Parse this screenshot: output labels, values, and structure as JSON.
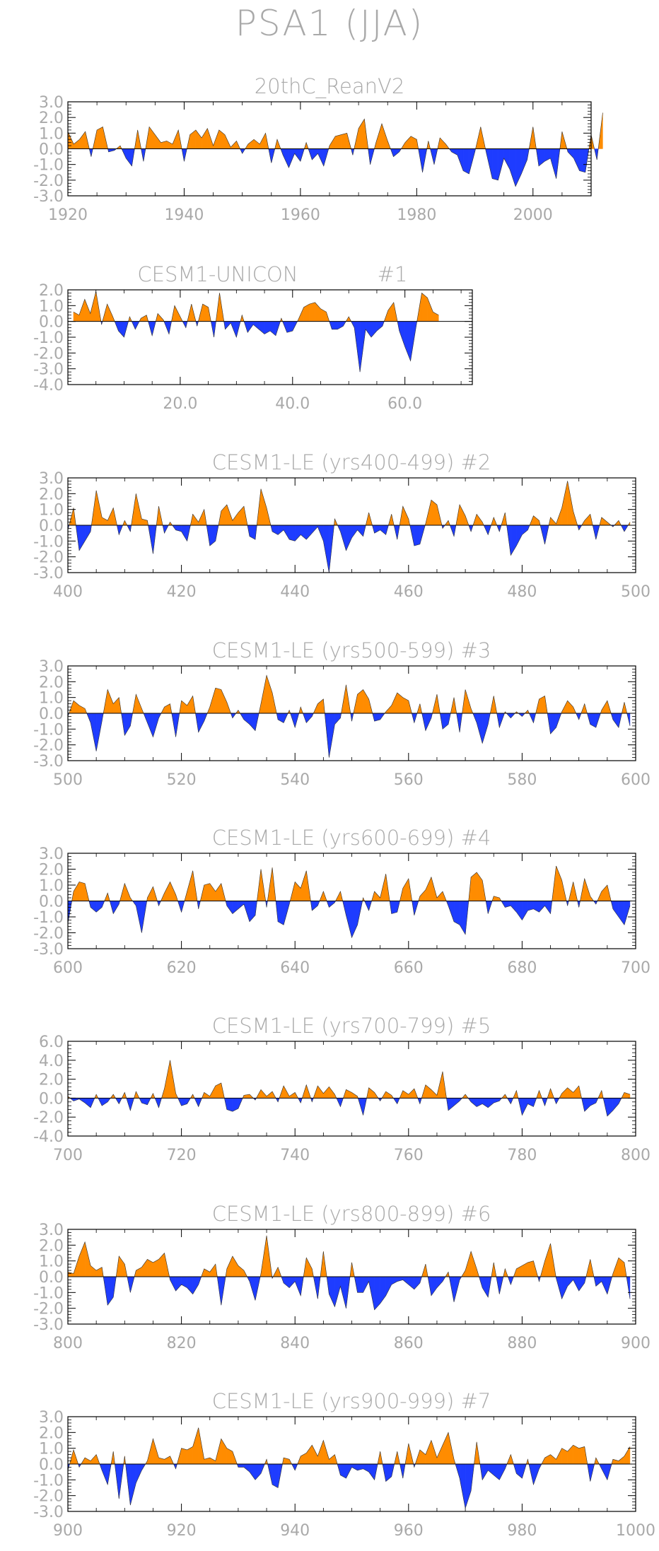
{
  "title": "PSA1  (JJA)",
  "colors": {
    "positive": "#ff8c00",
    "negative": "#1e3cff",
    "text": "#a9a9a9",
    "axis": "#000000"
  },
  "chart_data": [
    {
      "type": "area",
      "title": "20thC_ReanV2",
      "x": {
        "start": 1920,
        "end": 2010,
        "min": 1920,
        "max": 2010,
        "ticks": [
          1920,
          1940,
          1960,
          1980,
          2000
        ],
        "tick_labels": [
          "1920",
          "1940",
          "1960",
          "1980",
          "2000"
        ]
      },
      "y": {
        "min": -3.0,
        "max": 3.0,
        "ticks": [
          -3.0,
          -2.0,
          -1.0,
          0.0,
          1.0,
          2.0,
          3.0
        ],
        "tick_labels": [
          "-3.0",
          "-2.0",
          "-1.0",
          "0.0",
          "1.0",
          "2.0",
          "3.0"
        ]
      },
      "values": [
        1.1,
        0.3,
        0.6,
        1.1,
        -0.5,
        1.2,
        1.4,
        -0.2,
        -0.1,
        0.2,
        -0.6,
        -1.1,
        1.2,
        -0.8,
        1.4,
        0.9,
        0.4,
        0.5,
        0.3,
        1.2,
        -0.8,
        0.9,
        1.2,
        0.7,
        1.3,
        0.2,
        1.2,
        0.9,
        0.1,
        0.5,
        -0.3,
        0.3,
        0.6,
        0.3,
        1.0,
        -0.9,
        0.6,
        -0.4,
        -1.2,
        -0.3,
        -0.8,
        0.4,
        -0.7,
        -0.3,
        -1.1,
        0.2,
        0.8,
        0.9,
        1.0,
        -0.4,
        1.3,
        1.9,
        -1.0,
        0.4,
        1.6,
        0.5,
        -0.5,
        -0.2,
        0.4,
        0.8,
        0.6,
        -1.5,
        0.5,
        -1.0,
        0.7,
        0.3,
        -0.2,
        -0.4,
        -1.4,
        -1.6,
        -0.2,
        1.4,
        -0.3,
        -1.9,
        -2.0,
        -0.6,
        -1.3,
        -2.4,
        -1.6,
        -0.7,
        1.4,
        -1.1,
        -0.8,
        -0.6,
        -1.9,
        1.1,
        -0.2,
        -0.6,
        -1.4,
        -1.5,
        0.9,
        -0.7,
        2.3
      ]
    },
    {
      "type": "area",
      "title": "CESM1-UNICON",
      "run_label": "#1",
      "x": {
        "start": 1,
        "end": 70,
        "min": 0,
        "max": 72,
        "ticks": [
          20,
          40,
          60
        ],
        "tick_labels": [
          "20.0",
          "40.0",
          "60.0"
        ]
      },
      "y": {
        "min": -4.0,
        "max": 2.0,
        "ticks": [
          -4.0,
          -3.0,
          -2.0,
          -1.0,
          0.0,
          1.0,
          2.0
        ],
        "tick_labels": [
          "-4.0",
          "-3.0",
          "-2.0",
          "-1.0",
          "0.0",
          "1.0",
          "2.0"
        ]
      },
      "values": [
        0.6,
        0.4,
        1.4,
        0.5,
        1.9,
        -0.2,
        1.1,
        0.3,
        -0.6,
        -1.0,
        0.3,
        -0.5,
        0.2,
        0.4,
        -0.9,
        0.5,
        0.1,
        -0.8,
        1.0,
        0.3,
        -0.4,
        1.1,
        -0.3,
        1.1,
        0.9,
        -1.0,
        1.8,
        -0.5,
        -0.1,
        -1.0,
        0.4,
        -0.7,
        -0.2,
        -0.5,
        -0.8,
        -0.6,
        -0.9,
        0.2,
        -0.7,
        -0.6,
        0.1,
        0.9,
        1.1,
        1.2,
        0.8,
        0.6,
        -0.5,
        -0.5,
        -0.3,
        0.3,
        -0.4,
        -3.2,
        -0.5,
        -1.0,
        -0.6,
        -0.3,
        0.7,
        1.2,
        -0.6,
        -1.6,
        -2.5,
        -0.3,
        1.8,
        1.5,
        0.6,
        0.4
      ]
    },
    {
      "type": "area",
      "title": "CESM1-LE (yrs400-499)",
      "run_label": "#2",
      "x": {
        "start": 400,
        "end": 499,
        "min": 400,
        "max": 500,
        "ticks": [
          400,
          420,
          440,
          460,
          480,
          500
        ],
        "tick_labels": [
          "400",
          "420",
          "440",
          "460",
          "480",
          "500"
        ]
      },
      "y": {
        "min": -3.0,
        "max": 3.0,
        "ticks": [
          -3.0,
          -2.0,
          -1.0,
          0.0,
          1.0,
          2.0,
          3.0
        ],
        "tick_labels": [
          "-3.0",
          "-2.0",
          "-1.0",
          "0.0",
          "1.0",
          "2.0",
          "3.0"
        ]
      },
      "values": [
        -0.3,
        1.1,
        -1.6,
        -1.0,
        -0.4,
        2.2,
        0.5,
        0.3,
        1.1,
        -0.6,
        0.3,
        -0.4,
        2.0,
        0.4,
        0.3,
        -1.8,
        1.2,
        -0.5,
        0.2,
        -0.3,
        -0.4,
        -1.0,
        0.7,
        0.2,
        1.0,
        -1.3,
        -1.0,
        0.9,
        1.3,
        0.3,
        0.8,
        1.2,
        -0.7,
        -0.9,
        2.3,
        1.1,
        -0.4,
        -0.6,
        -0.3,
        -0.9,
        -1.0,
        -0.6,
        -0.9,
        -0.5,
        -0.1,
        -1.0,
        -3.0,
        0.4,
        -0.4,
        -1.6,
        -0.8,
        -0.3,
        -0.7,
        0.8,
        -0.5,
        -0.3,
        -0.6,
        0.7,
        -0.9,
        1.2,
        0.4,
        -1.3,
        -1.2,
        0.1,
        1.6,
        1.3,
        -0.2,
        0.3,
        -0.7,
        1.3,
        0.6,
        -0.4,
        0.7,
        0.2,
        -0.6,
        0.5,
        -0.4,
        0.8,
        -1.9,
        -1.3,
        -0.6,
        -0.3,
        0.6,
        0.3,
        -1.2,
        0.5,
        0.1,
        1.1,
        2.8,
        0.9,
        -0.3,
        0.3,
        0.7,
        -0.9,
        0.5,
        0.2,
        -0.1,
        0.3,
        -0.4,
        0.2
      ]
    },
    {
      "type": "area",
      "title": "CESM1-LE (yrs500-599)",
      "run_label": "#3",
      "x": {
        "start": 500,
        "end": 599,
        "min": 500,
        "max": 600,
        "ticks": [
          500,
          520,
          540,
          560,
          580,
          600
        ],
        "tick_labels": [
          "500",
          "520",
          "540",
          "560",
          "580",
          "600"
        ]
      },
      "y": {
        "min": -3.0,
        "max": 3.0,
        "ticks": [
          -3.0,
          -2.0,
          -1.0,
          0.0,
          1.0,
          2.0,
          3.0
        ],
        "tick_labels": [
          "-3.0",
          "-2.0",
          "-1.0",
          "0.0",
          "1.0",
          "2.0",
          "3.0"
        ]
      },
      "values": [
        -0.2,
        0.8,
        0.5,
        0.3,
        -0.6,
        -2.4,
        -0.5,
        1.5,
        0.6,
        1.0,
        -1.4,
        -0.8,
        1.2,
        0.3,
        -0.6,
        -1.5,
        -0.3,
        0.4,
        0.6,
        -1.5,
        0.8,
        0.5,
        1.1,
        -1.2,
        -0.5,
        0.4,
        1.6,
        1.5,
        0.7,
        -0.3,
        0.2,
        -0.4,
        -0.7,
        -1.1,
        0.6,
        2.4,
        1.3,
        -0.4,
        -0.6,
        0.2,
        -0.9,
        0.4,
        -0.6,
        -0.2,
        0.6,
        0.9,
        -2.8,
        -0.7,
        -0.3,
        1.8,
        -0.5,
        1.2,
        1.5,
        0.9,
        -0.5,
        -0.4,
        0.1,
        0.5,
        1.3,
        1.0,
        0.8,
        -0.6,
        0.6,
        -1.1,
        -0.3,
        1.2,
        -1.0,
        -0.7,
        1.0,
        -1.2,
        1.5,
        0.3,
        -0.6,
        -1.9,
        -0.7,
        1.1,
        -0.9,
        0.1,
        -0.3,
        0.1,
        -0.2,
        0.2,
        -0.6,
        0.9,
        1.1,
        -1.3,
        -0.9,
        0.1,
        0.8,
        0.4,
        -0.4,
        0.6,
        -0.7,
        -0.9,
        0.2,
        0.8,
        -0.4,
        -0.9,
        0.7,
        -0.8
      ]
    },
    {
      "type": "area",
      "title": "CESM1-LE (yrs600-699)",
      "run_label": "#4",
      "x": {
        "start": 600,
        "end": 699,
        "min": 600,
        "max": 700,
        "ticks": [
          600,
          620,
          640,
          660,
          680,
          700
        ],
        "tick_labels": [
          "600",
          "620",
          "640",
          "660",
          "680",
          "700"
        ]
      },
      "y": {
        "min": -3.0,
        "max": 3.0,
        "ticks": [
          -3.0,
          -2.0,
          -1.0,
          0.0,
          1.0,
          2.0,
          3.0
        ],
        "tick_labels": [
          "-3.0",
          "-2.0",
          "-1.0",
          "0.0",
          "1.0",
          "2.0",
          "3.0"
        ]
      },
      "values": [
        -1.4,
        0.6,
        1.2,
        1.1,
        -0.4,
        -0.7,
        -0.4,
        0.5,
        -0.8,
        -0.2,
        1.1,
        0.2,
        -0.3,
        -2.0,
        0.2,
        0.9,
        -0.3,
        0.5,
        1.2,
        0.4,
        -0.7,
        0.6,
        1.9,
        -0.5,
        1.0,
        1.1,
        0.6,
        1.1,
        -0.3,
        -0.8,
        -0.5,
        -0.2,
        -1.3,
        -0.9,
        2.0,
        -0.4,
        2.1,
        -1.3,
        -1.5,
        -0.2,
        1.2,
        0.8,
        1.9,
        -0.6,
        -0.3,
        0.6,
        -0.4,
        -0.1,
        0.6,
        -0.9,
        -2.3,
        -1.5,
        0.2,
        -0.6,
        0.6,
        0.2,
        1.7,
        -0.8,
        -0.7,
        0.8,
        1.4,
        -0.9,
        0.3,
        0.7,
        1.5,
        0.2,
        0.6,
        -0.3,
        -1.3,
        -1.5,
        -2.1,
        1.5,
        1.8,
        1.3,
        -0.8,
        0.3,
        0.2,
        -0.4,
        -0.3,
        -0.7,
        -1.2,
        -0.6,
        -0.5,
        -0.7,
        -0.3,
        -0.8,
        2.2,
        1.3,
        -0.3,
        1.2,
        -0.4,
        1.4,
        0.3,
        -0.2,
        0.6,
        1.0,
        -0.5,
        -1.0,
        -1.5,
        -0.3
      ]
    },
    {
      "type": "area",
      "title": "CESM1-LE (yrs700-799)",
      "run_label": "#5",
      "x": {
        "start": 700,
        "end": 799,
        "min": 700,
        "max": 800,
        "ticks": [
          700,
          720,
          740,
          760,
          780,
          800
        ],
        "tick_labels": [
          "700",
          "720",
          "740",
          "760",
          "780",
          "800"
        ]
      },
      "y": {
        "min": -4.0,
        "max": 6.0,
        "ticks": [
          -4.0,
          -2.0,
          0.0,
          2.0,
          4.0,
          6.0
        ],
        "tick_labels": [
          "-4.0",
          "-2.0",
          "0.0",
          "2.0",
          "4.0",
          "6.0"
        ]
      },
      "values": [
        0.2,
        -0.3,
        -0.1,
        -0.5,
        -1.0,
        0.4,
        -0.8,
        -0.4,
        0.4,
        -0.6,
        0.6,
        -1.3,
        0.7,
        -0.5,
        -0.7,
        0.5,
        -1.0,
        1.0,
        4.0,
        0.5,
        -0.8,
        -0.6,
        0.4,
        -0.9,
        0.6,
        0.2,
        1.3,
        1.6,
        -1.2,
        -1.4,
        -1.1,
        0.3,
        0.4,
        -0.2,
        0.9,
        0.2,
        0.7,
        -0.4,
        1.3,
        0.2,
        0.6,
        -0.5,
        1.4,
        -0.4,
        1.3,
        0.5,
        1.2,
        0.4,
        -0.9,
        0.9,
        0.6,
        0.2,
        -1.8,
        1.1,
        0.6,
        -0.3,
        0.7,
        0.3,
        -0.6,
        0.8,
        0.4,
        1.0,
        -0.6,
        1.4,
        0.9,
        0.3,
        2.8,
        -1.3,
        -0.8,
        -0.3,
        0.4,
        -0.4,
        -0.9,
        -0.6,
        -1.0,
        -0.5,
        -0.3,
        0.4,
        -0.6,
        0.8,
        -1.8,
        -0.6,
        -0.9,
        0.8,
        -0.8,
        1.0,
        -0.6,
        0.5,
        1.1,
        0.6,
        1.3,
        -1.4,
        -0.8,
        -0.5,
        0.8,
        -1.9,
        -1.3,
        -0.6,
        0.6,
        0.4
      ]
    },
    {
      "type": "area",
      "title": "CESM1-LE (yrs800-899)",
      "run_label": "#6",
      "x": {
        "start": 800,
        "end": 899,
        "min": 800,
        "max": 900,
        "ticks": [
          800,
          820,
          840,
          860,
          880,
          900
        ],
        "tick_labels": [
          "800",
          "820",
          "840",
          "860",
          "880",
          "900"
        ]
      },
      "y": {
        "min": -3.0,
        "max": 3.0,
        "ticks": [
          -3.0,
          -2.0,
          -1.0,
          0.0,
          1.0,
          2.0,
          3.0
        ],
        "tick_labels": [
          "-3.0",
          "-2.0",
          "-1.0",
          "0.0",
          "1.0",
          "2.0",
          "3.0"
        ]
      },
      "values": [
        0.3,
        0.2,
        1.3,
        2.2,
        0.7,
        0.4,
        0.6,
        -1.8,
        -1.3,
        1.3,
        0.8,
        -1.0,
        0.4,
        0.6,
        1.1,
        0.9,
        1.1,
        1.5,
        -0.2,
        -0.9,
        -0.5,
        -0.7,
        -1.1,
        -0.5,
        0.5,
        0.3,
        0.8,
        -1.8,
        0.5,
        1.3,
        0.7,
        0.4,
        -0.3,
        -1.5,
        0.2,
        2.6,
        -0.1,
        0.6,
        -0.4,
        -0.7,
        -0.3,
        -1.2,
        1.2,
        0.5,
        -1.4,
        1.6,
        -1.1,
        -1.9,
        -0.6,
        -2.0,
        0.9,
        -1.0,
        -1.0,
        -0.3,
        -2.1,
        -1.7,
        -1.2,
        -0.5,
        -0.3,
        -0.2,
        -0.5,
        -0.8,
        -0.4,
        0.8,
        -1.2,
        -0.7,
        -0.3,
        0.3,
        -1.6,
        -0.2,
        0.4,
        1.6,
        0.5,
        -0.7,
        -1.3,
        0.9,
        -1.1,
        0.5,
        -0.5,
        0.5,
        0.7,
        0.9,
        1.0,
        -0.3,
        1.0,
        2.1,
        -0.1,
        -1.4,
        -0.6,
        -0.2,
        -0.9,
        -0.4,
        1.1,
        -0.6,
        -0.3,
        -1.1,
        0.2,
        1.2,
        0.9,
        -1.4
      ]
    },
    {
      "type": "area",
      "title": "CESM1-LE (yrs900-999)",
      "run_label": "#7",
      "x": {
        "start": 900,
        "end": 999,
        "min": 900,
        "max": 1000,
        "ticks": [
          900,
          920,
          940,
          960,
          980,
          1000
        ],
        "tick_labels": [
          "900",
          "920",
          "940",
          "960",
          "980",
          "1000"
        ]
      },
      "y": {
        "min": -3.0,
        "max": 3.0,
        "ticks": [
          -3.0,
          -2.0,
          -1.0,
          0.0,
          1.0,
          2.0,
          3.0
        ],
        "tick_labels": [
          "-3.0",
          "-2.0",
          "-1.0",
          "0.0",
          "1.0",
          "2.0",
          "3.0"
        ]
      },
      "values": [
        -0.4,
        0.9,
        -0.2,
        0.4,
        0.2,
        0.6,
        -0.4,
        -1.3,
        0.8,
        -2.2,
        0.5,
        -2.6,
        -1.2,
        -0.4,
        0.2,
        1.6,
        0.4,
        0.3,
        0.5,
        -0.3,
        1.0,
        0.9,
        1.1,
        2.3,
        0.3,
        0.4,
        0.2,
        1.6,
        1.0,
        0.8,
        -0.2,
        -0.2,
        -0.5,
        -1.0,
        -0.6,
        0.3,
        -1.3,
        -1.5,
        0.4,
        0.3,
        -0.4,
        0.5,
        0.7,
        1.2,
        0.5,
        1.5,
        0.3,
        0.6,
        -0.7,
        -0.9,
        -0.2,
        -0.4,
        -0.3,
        -0.5,
        -1.0,
        0.8,
        -1.1,
        -0.8,
        0.8,
        -0.9,
        1.3,
        -0.2,
        0.9,
        0.6,
        1.5,
        0.4,
        1.2,
        2.0,
        0.3,
        -0.9,
        -2.8,
        -1.7,
        1.4,
        -1.0,
        -0.4,
        -0.7,
        -1.0,
        -0.3,
        0.6,
        -0.6,
        -0.9,
        0.3,
        -1.3,
        -0.3,
        0.4,
        0.6,
        0.3,
        1.0,
        0.8,
        1.2,
        1.0,
        1.1,
        -1.1,
        0.4,
        -0.3,
        -1.0,
        0.3,
        0.2,
        0.5,
        1.1
      ]
    }
  ]
}
